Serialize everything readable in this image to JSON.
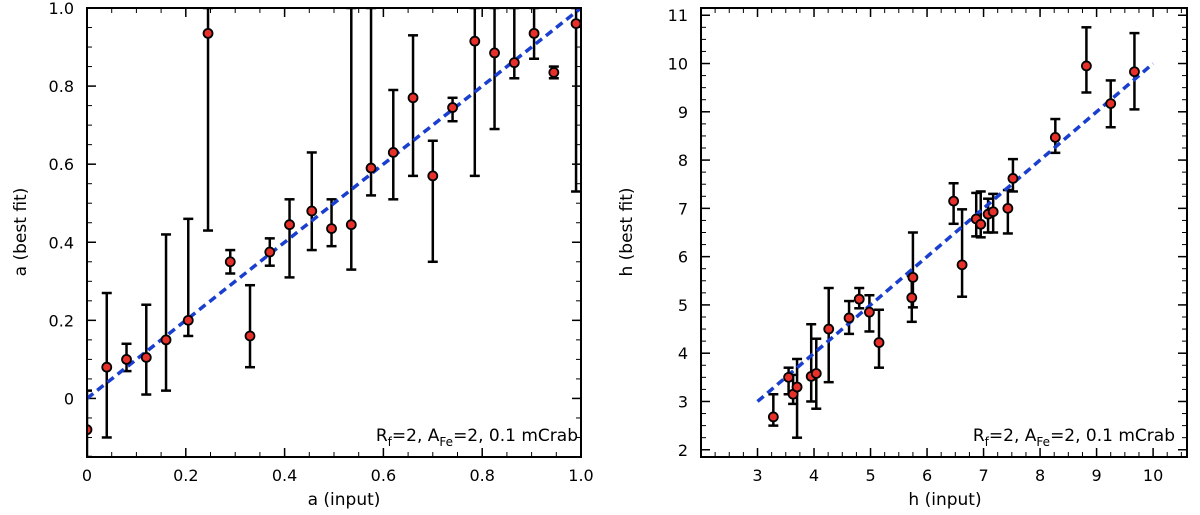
{
  "chart_data": [
    {
      "type": "scatter",
      "xlabel": "a (input)",
      "ylabel": "a (best fit)",
      "xlim": [
        0,
        1.0
      ],
      "ylim": [
        -0.15,
        1.0
      ],
      "xticks": [
        0,
        0.2,
        0.4,
        0.6,
        0.8,
        1.0
      ],
      "xtick_labels": [
        "0",
        "0.2",
        "0.4",
        "0.6",
        "0.8",
        "1.0"
      ],
      "yticks": [
        0,
        0.2,
        0.4,
        0.6,
        0.8,
        1.0
      ],
      "ytick_labels": [
        "0",
        "0.2",
        "0.4",
        "0.6",
        "0.8",
        "1.0"
      ],
      "annotation": {
        "r_base": "R",
        "r_sub": "f",
        "r_eq": "=2, ",
        "a_base": "A",
        "a_sub": "Fe",
        "a_eq": "=2, 0.1 mCrab"
      },
      "fit_line": {
        "x": [
          0,
          1.0
        ],
        "y": [
          0,
          1.0
        ]
      },
      "series": [
        {
          "name": "best fit",
          "marker_color": "#e8302a",
          "points": [
            {
              "x": 0.0,
              "y": -0.08,
              "lo": -0.15,
              "hi": 0.02
            },
            {
              "x": 0.04,
              "y": 0.08,
              "lo": -0.1,
              "hi": 0.27
            },
            {
              "x": 0.08,
              "y": 0.1,
              "lo": 0.07,
              "hi": 0.14
            },
            {
              "x": 0.12,
              "y": 0.105,
              "lo": 0.01,
              "hi": 0.24
            },
            {
              "x": 0.16,
              "y": 0.15,
              "lo": 0.02,
              "hi": 0.42
            },
            {
              "x": 0.205,
              "y": 0.2,
              "lo": 0.16,
              "hi": 0.46
            },
            {
              "x": 0.245,
              "y": 0.935,
              "lo": 0.43,
              "hi": 1.0
            },
            {
              "x": 0.29,
              "y": 0.35,
              "lo": 0.32,
              "hi": 0.38
            },
            {
              "x": 0.33,
              "y": 0.16,
              "lo": 0.08,
              "hi": 0.29
            },
            {
              "x": 0.37,
              "y": 0.375,
              "lo": 0.34,
              "hi": 0.41
            },
            {
              "x": 0.41,
              "y": 0.445,
              "lo": 0.31,
              "hi": 0.51
            },
            {
              "x": 0.455,
              "y": 0.48,
              "lo": 0.38,
              "hi": 0.63
            },
            {
              "x": 0.495,
              "y": 0.435,
              "lo": 0.39,
              "hi": 0.51
            },
            {
              "x": 0.535,
              "y": 0.445,
              "lo": 0.33,
              "hi": 1.0
            },
            {
              "x": 0.575,
              "y": 0.59,
              "lo": 0.52,
              "hi": 1.0
            },
            {
              "x": 0.62,
              "y": 0.63,
              "lo": 0.51,
              "hi": 0.79
            },
            {
              "x": 0.66,
              "y": 0.77,
              "lo": 0.57,
              "hi": 0.93
            },
            {
              "x": 0.7,
              "y": 0.57,
              "lo": 0.35,
              "hi": 0.66
            },
            {
              "x": 0.74,
              "y": 0.745,
              "lo": 0.71,
              "hi": 0.77
            },
            {
              "x": 0.785,
              "y": 0.915,
              "lo": 0.57,
              "hi": 1.0
            },
            {
              "x": 0.825,
              "y": 0.885,
              "lo": 0.69,
              "hi": 1.0
            },
            {
              "x": 0.865,
              "y": 0.86,
              "lo": 0.82,
              "hi": 1.0
            },
            {
              "x": 0.905,
              "y": 0.935,
              "lo": 0.87,
              "hi": 1.0
            },
            {
              "x": 0.945,
              "y": 0.835,
              "lo": 0.82,
              "hi": 0.85
            },
            {
              "x": 0.99,
              "y": 0.96,
              "lo": 0.53,
              "hi": 1.0
            }
          ]
        }
      ]
    },
    {
      "type": "scatter",
      "xlabel": "h (input)",
      "ylabel": "h (best fit)",
      "xlim": [
        2.0,
        10.6
      ],
      "ylim": [
        1.85,
        11.15
      ],
      "xticks": [
        3,
        4,
        5,
        6,
        7,
        8,
        9,
        10
      ],
      "xtick_labels": [
        "3",
        "4",
        "5",
        "6",
        "7",
        "8",
        "9",
        "10"
      ],
      "yticks": [
        2,
        3,
        4,
        5,
        6,
        7,
        8,
        9,
        10,
        11
      ],
      "ytick_labels": [
        "2",
        "3",
        "4",
        "5",
        "6",
        "7",
        "8",
        "9",
        "10",
        "11"
      ],
      "annotation": {
        "r_base": "R",
        "r_sub": "f",
        "r_eq": "=2, ",
        "a_base": "A",
        "a_sub": "Fe",
        "a_eq": "=2, 0.1 mCrab"
      },
      "fit_line": {
        "x": [
          3,
          10
        ],
        "y": [
          3,
          10
        ]
      },
      "series": [
        {
          "name": "best fit",
          "marker_color": "#e8302a",
          "points": [
            {
              "x": 3.28,
              "y": 2.68,
              "lo": 2.5,
              "hi": 3.15
            },
            {
              "x": 3.55,
              "y": 3.5,
              "lo": 3.15,
              "hi": 3.7
            },
            {
              "x": 3.63,
              "y": 3.15,
              "lo": 2.95,
              "hi": 3.55
            },
            {
              "x": 3.7,
              "y": 3.3,
              "lo": 2.25,
              "hi": 3.88
            },
            {
              "x": 3.95,
              "y": 3.52,
              "lo": 3.0,
              "hi": 4.6
            },
            {
              "x": 4.04,
              "y": 3.58,
              "lo": 2.85,
              "hi": 4.3
            },
            {
              "x": 4.26,
              "y": 4.5,
              "lo": 3.4,
              "hi": 5.35
            },
            {
              "x": 4.62,
              "y": 4.73,
              "lo": 4.4,
              "hi": 5.08
            },
            {
              "x": 4.8,
              "y": 5.12,
              "lo": 4.93,
              "hi": 5.35
            },
            {
              "x": 4.98,
              "y": 4.85,
              "lo": 4.45,
              "hi": 5.2
            },
            {
              "x": 5.15,
              "y": 4.22,
              "lo": 3.7,
              "hi": 4.9
            },
            {
              "x": 5.73,
              "y": 5.15,
              "lo": 4.65,
              "hi": 5.6
            },
            {
              "x": 5.75,
              "y": 5.57,
              "lo": 4.95,
              "hi": 6.5
            },
            {
              "x": 6.47,
              "y": 7.15,
              "lo": 6.68,
              "hi": 7.52
            },
            {
              "x": 6.62,
              "y": 5.83,
              "lo": 5.17,
              "hi": 6.98
            },
            {
              "x": 6.87,
              "y": 6.78,
              "lo": 6.42,
              "hi": 7.32
            },
            {
              "x": 6.95,
              "y": 6.67,
              "lo": 6.4,
              "hi": 7.35
            },
            {
              "x": 7.08,
              "y": 6.88,
              "lo": 6.5,
              "hi": 7.2
            },
            {
              "x": 7.17,
              "y": 6.93,
              "lo": 6.5,
              "hi": 7.3
            },
            {
              "x": 7.43,
              "y": 7.0,
              "lo": 6.48,
              "hi": 7.38
            },
            {
              "x": 7.52,
              "y": 7.62,
              "lo": 7.35,
              "hi": 8.02
            },
            {
              "x": 8.27,
              "y": 8.47,
              "lo": 8.15,
              "hi": 8.85
            },
            {
              "x": 8.82,
              "y": 9.95,
              "lo": 9.4,
              "hi": 10.75
            },
            {
              "x": 9.25,
              "y": 9.17,
              "lo": 8.68,
              "hi": 9.65
            },
            {
              "x": 9.67,
              "y": 9.83,
              "lo": 9.05,
              "hi": 10.63
            }
          ]
        }
      ]
    }
  ]
}
